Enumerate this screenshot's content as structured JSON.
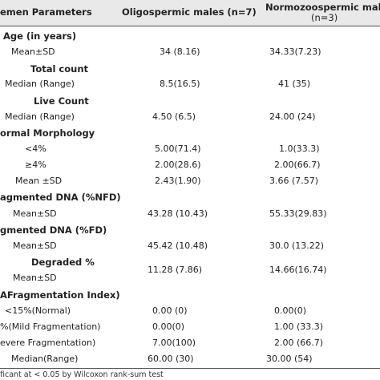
{
  "header": {
    "col1": "emen Parameters",
    "col2": "Oligospermic males (n=7)",
    "col3_line1": "Normozoospermic males",
    "col3_line2": "(n=3)"
  },
  "rows": [
    {
      "label": "Age (in years)",
      "bold": true,
      "v1": "",
      "v2": ""
    },
    {
      "label": "Mean±SD",
      "bold": false,
      "v1": "34 (8.16)",
      "v2": "34.33(7.23)"
    },
    {
      "label": "Total count",
      "bold": true,
      "v1": "",
      "v2": ""
    },
    {
      "label": "Median (Range)",
      "bold": false,
      "v1": "8.5(16.5)",
      "v2": "41 (35)"
    },
    {
      "label": "Live Count",
      "bold": true,
      "v1": "",
      "v2": ""
    },
    {
      "label": "Median (Range)",
      "bold": false,
      "v1": "4.50 (6.5)",
      "v2": "24.00 (24)"
    },
    {
      "label": "ormal Morphology",
      "bold": true,
      "v1": "",
      "v2": ""
    },
    {
      "label": "<4%",
      "bold": false,
      "v1": "5.00(71.4)",
      "v2": "1.0(33.3)"
    },
    {
      "label": "≥4%",
      "bold": false,
      "v1": "2.00(28.6)",
      "v2": "2.00(66.7)"
    },
    {
      "label": "Mean ±SD",
      "bold": false,
      "v1": "2.43(1.90)",
      "v2": "3.66 (7.57)"
    },
    {
      "label": "agmented DNA (%NFD)",
      "bold": true,
      "v1": "",
      "v2": ""
    },
    {
      "label": "Mean±SD",
      "bold": false,
      "v1": "43.28 (10.43)",
      "v2": "55.33(29.83)"
    },
    {
      "label": "gmented DNA (%FD)",
      "bold": true,
      "v1": "",
      "v2": ""
    },
    {
      "label": "Mean±SD",
      "bold": false,
      "v1": "45.42 (10.48)",
      "v2": "30.0 (13.22)"
    },
    {
      "label": "Degraded %",
      "bold": true,
      "v1": "11.28 (7.86)",
      "v2": "14.66(16.74)"
    },
    {
      "label": "Mean±SD",
      "bold": false,
      "v1": "",
      "v2": ""
    },
    {
      "label": "AFragmentation Index)",
      "bold": true,
      "v1": "",
      "v2": ""
    },
    {
      "label": "<15%(Normal)",
      "bold": false,
      "v1": "0.00 (0)",
      "v2": "0.00(0)"
    },
    {
      "label": "%(Mild Fragmentation)",
      "bold": false,
      "v1": "0.00(0)",
      "v2": "1.00 (33.3)"
    },
    {
      "label": "evere Fragmentation)",
      "bold": false,
      "v1": "7.00(100)",
      "v2": "2.00 (66.7)"
    },
    {
      "label": "Median(Range)",
      "bold": false,
      "v1": "60.00 (30)",
      "v2": "30.00 (54)"
    }
  ],
  "footnote": "ficant at < 0.05 by Wilcoxon rank-sum test"
}
